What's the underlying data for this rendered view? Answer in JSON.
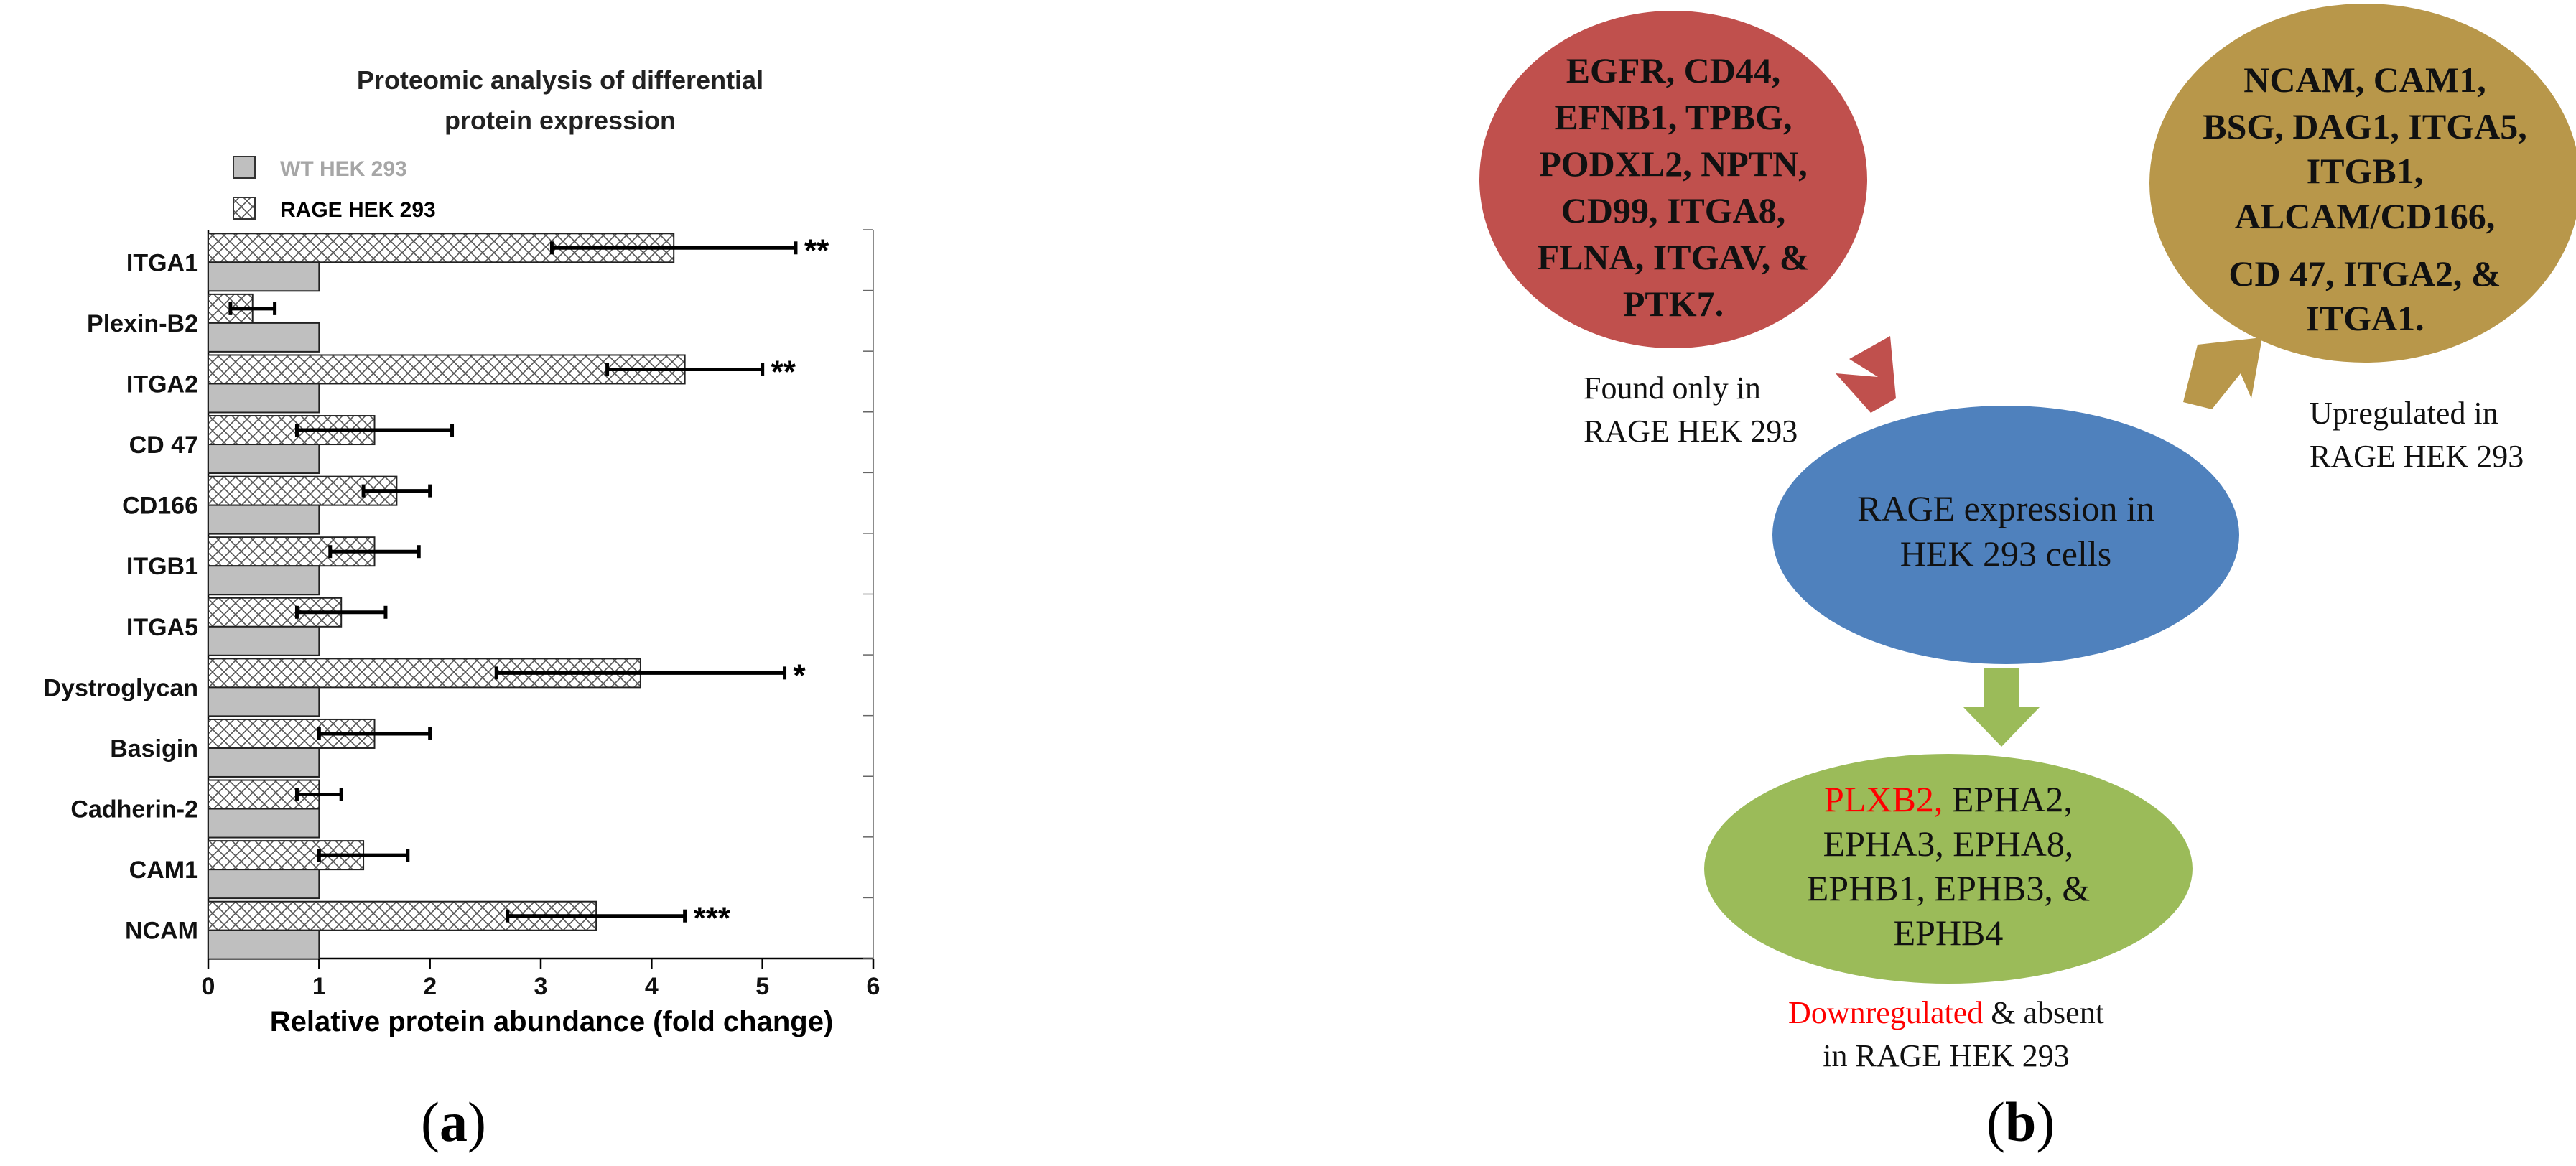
{
  "chart_data": {
    "type": "bar",
    "orientation": "horizontal",
    "title_lines": [
      "Proteomic analysis of differential",
      "protein expression"
    ],
    "xlabel": "Relative protein abundance (fold change)",
    "ylabel": "",
    "xlim": [
      0,
      6
    ],
    "xticks": [
      "0",
      "1",
      "2",
      "3",
      "4",
      "5",
      "6"
    ],
    "grid": false,
    "legend_position": "top-left",
    "categories": [
      "ITGA1",
      "Plexin-B2",
      "ITGA2",
      "CD 47",
      "CD166",
      "ITGB1",
      "ITGA5",
      "Dystroglycan",
      "Basigin",
      "Cadherin-2",
      "CAM1",
      "NCAM"
    ],
    "series": [
      {
        "name": "WT HEK 293",
        "values": [
          1,
          1,
          1,
          1,
          1,
          1,
          1,
          1,
          1,
          1,
          1,
          1
        ],
        "fill": "solid",
        "color": "#bfbfbf"
      },
      {
        "name": "RAGE HEK 293",
        "values": [
          4.2,
          0.4,
          4.3,
          1.5,
          1.7,
          1.5,
          1.2,
          3.9,
          1.5,
          1.0,
          1.4,
          3.5
        ],
        "fill": "crosshatch",
        "color": "#ffffff",
        "error": [
          1.1,
          0.2,
          0.7,
          0.7,
          0.3,
          0.4,
          0.4,
          1.3,
          0.5,
          0.2,
          0.4,
          0.8
        ]
      }
    ],
    "significance": [
      "**",
      "",
      "**",
      "",
      "",
      "",
      "",
      "*",
      "",
      "",
      "",
      "***"
    ],
    "legend_colors": {
      "wt_text": "#a6a6a6",
      "rage_text": "#000000"
    }
  },
  "panel_a": {
    "label_open": "(",
    "label_letter": "a",
    "label_close": ")"
  },
  "panel_b": {
    "label_open": "(",
    "label_letter": "b",
    "label_close": ")",
    "center": {
      "lines": [
        "RAGE expression in",
        "HEK 293 cells"
      ],
      "color": "#4f81bd"
    },
    "found_only": {
      "lines": [
        "EGFR, CD44,",
        "EFNB1, TPBG,",
        "PODXL2, NPTN,",
        "CD99, ITGA8,",
        "FLNA, ITGAV, &",
        "PTK7."
      ],
      "color": "#c0504d",
      "caption": [
        "Found only in",
        "RAGE HEK 293"
      ]
    },
    "upregulated": {
      "lines": [
        "NCAM, CAM1,",
        "BSG, DAG1, ITGA5,",
        "ITGB1,",
        "ALCAM/CD166,",
        "CD 47, ITGA2, &",
        "ITGA1."
      ],
      "color": "#b8974a",
      "caption": [
        "Upregulated in",
        "RAGE HEK 293"
      ]
    },
    "downregulated": {
      "first_red": "PLXB2,",
      "first_rest": " EPHA2,",
      "lines": [
        "EPHA3, EPHA8,",
        "EPHB1, EPHB3, &",
        "EPHB4"
      ],
      "color": "#9bbb59",
      "caption_red": "Downregulated",
      "caption_rest": " & absent",
      "caption_line2": "in RAGE HEK 293"
    },
    "accent_red": "#ff0000"
  }
}
